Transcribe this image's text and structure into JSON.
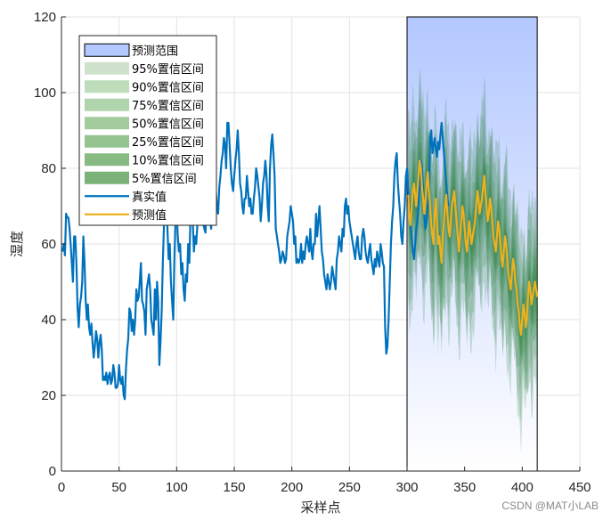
{
  "chart_data": {
    "type": "line",
    "xlabel": "采样点",
    "ylabel": "湿度",
    "xlim": [
      0,
      450
    ],
    "ylim": [
      0,
      120
    ],
    "xticks": [
      0,
      50,
      100,
      150,
      200,
      250,
      300,
      350,
      400,
      450
    ],
    "yticks": [
      0,
      20,
      40,
      60,
      80,
      100,
      120
    ],
    "grid": true,
    "legend_position": "top-left",
    "prediction_range": {
      "label": "预测范围",
      "x_start": 300,
      "x_end": 413,
      "y_top": 120,
      "color_top": "#b3c8ff",
      "color_bottom": "#ffffff"
    },
    "interval_labels": [
      "95%置信区间",
      "90%置信区间",
      "75%置信区间",
      "50%置信区间",
      "25%置信区间",
      "10%置信区间",
      "5%置信区间"
    ],
    "interval_colors": [
      "#cfe3cc",
      "#bfdcbb",
      "#b0d4ab",
      "#a3cc9d",
      "#96c491",
      "#88bb84",
      "#7bb277"
    ],
    "interval_half_widths": [
      30,
      25,
      19,
      13,
      9,
      6,
      3
    ],
    "band_fill": "#1e7a2e",
    "series": [
      {
        "name": "真实值",
        "color": "#0072bd",
        "x_start": 1,
        "values": [
          58,
          60,
          57,
          68,
          67,
          67,
          64,
          60,
          55,
          50,
          62,
          62,
          55,
          43,
          38,
          44,
          46,
          50,
          62,
          55,
          45,
          40,
          44,
          38,
          36,
          39,
          34,
          30,
          33,
          37,
          35,
          30,
          34,
          36,
          32,
          24,
          25,
          24,
          26,
          23,
          25,
          26,
          23,
          24,
          28,
          26,
          22,
          22,
          23,
          28,
          24,
          23,
          25,
          20,
          19,
          27,
          32,
          35,
          43,
          42,
          37,
          40,
          36,
          40,
          48,
          45,
          46,
          50,
          55,
          45,
          44,
          42,
          36,
          48,
          50,
          52,
          48,
          40,
          38,
          36,
          48,
          40,
          50,
          45,
          28,
          34,
          42,
          55,
          65,
          68,
          72,
          64,
          56,
          60,
          50,
          45,
          40,
          55,
          66,
          70,
          62,
          58,
          60,
          52,
          55,
          48,
          45,
          52,
          50,
          60,
          55,
          68,
          70,
          66,
          58,
          62,
          60,
          65,
          72,
          75,
          68,
          65,
          66,
          64,
          63,
          70,
          72,
          72,
          66,
          64,
          70,
          68,
          72,
          74,
          70,
          68,
          75,
          78,
          82,
          84,
          88,
          86,
          80,
          92,
          92,
          86,
          80,
          76,
          74,
          78,
          82,
          85,
          90,
          84,
          76,
          74,
          70,
          68,
          72,
          72,
          78,
          74,
          70,
          72,
          68,
          68,
          72,
          75,
          80,
          78,
          75,
          72,
          66,
          70,
          76,
          78,
          82,
          78,
          70,
          66,
          80,
          86,
          89,
          84,
          78,
          64,
          62,
          60,
          58,
          55,
          56,
          58,
          57,
          55,
          56,
          62,
          64,
          66,
          70,
          68,
          66,
          60,
          62,
          55,
          56,
          55,
          56,
          60,
          55,
          58,
          56,
          60,
          62,
          60,
          58,
          64,
          58,
          56,
          60,
          60,
          68,
          62,
          66,
          70,
          64,
          58,
          56,
          52,
          50,
          48,
          52,
          50,
          48,
          50,
          54,
          52,
          50,
          48,
          56,
          58,
          62,
          60,
          58,
          64,
          62,
          70,
          72,
          68,
          70,
          66,
          64,
          62,
          60,
          58,
          56,
          60,
          62,
          58,
          56,
          56,
          62,
          64,
          62,
          58,
          56,
          55,
          58,
          60,
          56,
          54,
          52,
          56,
          54,
          58,
          56,
          54,
          60,
          58,
          55,
          54,
          38,
          31,
          33,
          40,
          50,
          60,
          66,
          70,
          78,
          82,
          84,
          76,
          72,
          68,
          62,
          60,
          66,
          70,
          78,
          80,
          74,
          70,
          66,
          62,
          58,
          56,
          60,
          64,
          66,
          70,
          76,
          82,
          80,
          74,
          68,
          64,
          66,
          70,
          72,
          88,
          90,
          84,
          86,
          88,
          85,
          83,
          87,
          85,
          89,
          92,
          88,
          84,
          80,
          76,
          72,
          70
        ]
      },
      {
        "name": "预测值",
        "color": "#edb120",
        "x_start": 301,
        "values": [
          73,
          67,
          65,
          70,
          74,
          76,
          73,
          70,
          74,
          78,
          82,
          80,
          75,
          72,
          68,
          72,
          76,
          79,
          74,
          70,
          65,
          62,
          60,
          68,
          72,
          66,
          60,
          62,
          58,
          55,
          62,
          66,
          70,
          73,
          68,
          64,
          62,
          66,
          70,
          72,
          74,
          70,
          66,
          62,
          58,
          62,
          66,
          70,
          68,
          64,
          60,
          58,
          62,
          66,
          63,
          60,
          62,
          64,
          66,
          70,
          74,
          72,
          68,
          70,
          72,
          75,
          78,
          74,
          70,
          66,
          68,
          72,
          70,
          66,
          62,
          60,
          58,
          62,
          66,
          64,
          60,
          56,
          54,
          58,
          62,
          60,
          56,
          52,
          50,
          48,
          52,
          56,
          54,
          50,
          48,
          44,
          42,
          38,
          36,
          40,
          44,
          42,
          38,
          40,
          46,
          50,
          48,
          44,
          46,
          48,
          50,
          48,
          46
        ]
      }
    ]
  },
  "watermark": "CSDN @MAT小LAB"
}
